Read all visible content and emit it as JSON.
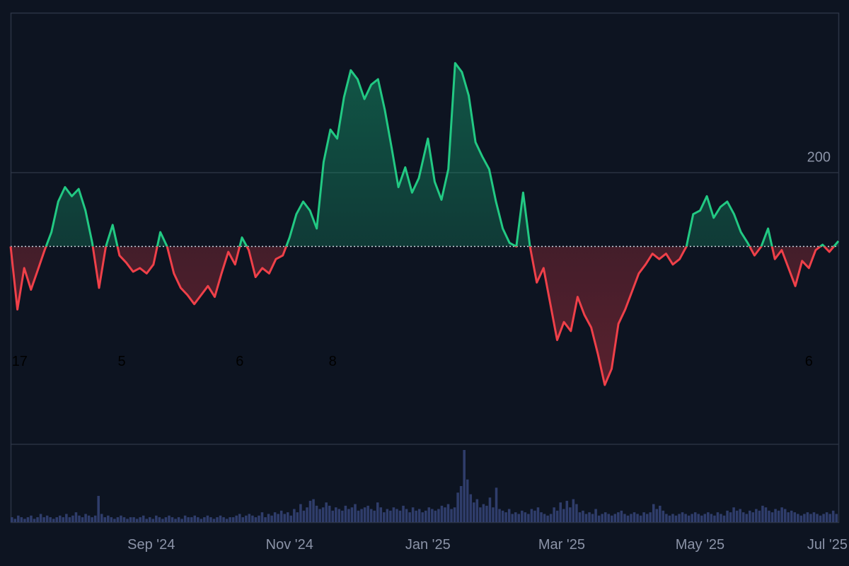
{
  "chart_data": {
    "type": "area",
    "title": "",
    "xlabel": "",
    "ylabel": "",
    "baseline": 150,
    "ylim": [
      40,
      280
    ],
    "y_ticks": [
      "200"
    ],
    "x_ticks": [
      {
        "label": "Sep '24",
        "x": "2024-09-01"
      },
      {
        "label": "Nov '24",
        "x": "2024-11-01"
      },
      {
        "label": "Jan '25",
        "x": "2025-01-01"
      },
      {
        "label": "Mar '25",
        "x": "2025-03-01"
      },
      {
        "label": "May '25",
        "x": "2025-05-01"
      },
      {
        "label": "Jul '25",
        "x": "2025-07-01"
      }
    ],
    "xlim": [
      "2024-07-01",
      "2025-07-01"
    ],
    "series": [
      {
        "values": [
          [
            "2024-07-01",
            150
          ],
          [
            "2024-07-04",
            115
          ],
          [
            "2024-07-07",
            138
          ],
          [
            "2024-07-10",
            126
          ],
          [
            "2024-07-13",
            137
          ],
          [
            "2024-07-16",
            148
          ],
          [
            "2024-07-19",
            158
          ],
          [
            "2024-07-22",
            175
          ],
          [
            "2024-07-25",
            183
          ],
          [
            "2024-07-28",
            178
          ],
          [
            "2024-07-31",
            182
          ],
          [
            "2024-08-03",
            170
          ],
          [
            "2024-08-06",
            152
          ],
          [
            "2024-08-09",
            127
          ],
          [
            "2024-08-12",
            150
          ],
          [
            "2024-08-15",
            162
          ],
          [
            "2024-08-18",
            145
          ],
          [
            "2024-08-21",
            141
          ],
          [
            "2024-08-24",
            136
          ],
          [
            "2024-08-27",
            138
          ],
          [
            "2024-08-30",
            135
          ],
          [
            "2024-09-02",
            140
          ],
          [
            "2024-09-05",
            158
          ],
          [
            "2024-09-08",
            150
          ],
          [
            "2024-09-11",
            135
          ],
          [
            "2024-09-14",
            127
          ],
          [
            "2024-09-17",
            123
          ],
          [
            "2024-09-20",
            118
          ],
          [
            "2024-09-23",
            123
          ],
          [
            "2024-09-26",
            128
          ],
          [
            "2024-09-29",
            122
          ],
          [
            "2024-10-02",
            135
          ],
          [
            "2024-10-05",
            147
          ],
          [
            "2024-10-08",
            140
          ],
          [
            "2024-10-11",
            155
          ],
          [
            "2024-10-14",
            148
          ],
          [
            "2024-10-17",
            133
          ],
          [
            "2024-10-20",
            138
          ],
          [
            "2024-10-23",
            135
          ],
          [
            "2024-10-26",
            143
          ],
          [
            "2024-10-29",
            145
          ],
          [
            "2024-11-01",
            155
          ],
          [
            "2024-11-04",
            168
          ],
          [
            "2024-11-07",
            175
          ],
          [
            "2024-11-10",
            170
          ],
          [
            "2024-11-13",
            160
          ],
          [
            "2024-11-16",
            197
          ],
          [
            "2024-11-19",
            215
          ],
          [
            "2024-11-22",
            210
          ],
          [
            "2024-11-25",
            233
          ],
          [
            "2024-11-28",
            248
          ],
          [
            "2024-12-01",
            243
          ],
          [
            "2024-12-04",
            232
          ],
          [
            "2024-12-07",
            240
          ],
          [
            "2024-12-10",
            243
          ],
          [
            "2024-12-13",
            226
          ],
          [
            "2024-12-16",
            205
          ],
          [
            "2024-12-19",
            183
          ],
          [
            "2024-12-22",
            194
          ],
          [
            "2024-12-25",
            180
          ],
          [
            "2024-12-28",
            188
          ],
          [
            "2025-01-01",
            210
          ],
          [
            "2025-01-04",
            186
          ],
          [
            "2025-01-07",
            176
          ],
          [
            "2025-01-10",
            193
          ],
          [
            "2025-01-13",
            252
          ],
          [
            "2025-01-16",
            247
          ],
          [
            "2025-01-19",
            234
          ],
          [
            "2025-01-22",
            208
          ],
          [
            "2025-01-25",
            200
          ],
          [
            "2025-01-28",
            193
          ],
          [
            "2025-01-31",
            175
          ],
          [
            "2025-02-03",
            160
          ],
          [
            "2025-02-06",
            152
          ],
          [
            "2025-02-09",
            150
          ],
          [
            "2025-02-12",
            180
          ],
          [
            "2025-02-15",
            150
          ],
          [
            "2025-02-18",
            130
          ],
          [
            "2025-02-21",
            138
          ],
          [
            "2025-02-24",
            118
          ],
          [
            "2025-02-27",
            98
          ],
          [
            "2025-03-02",
            108
          ],
          [
            "2025-03-05",
            103
          ],
          [
            "2025-03-08",
            122
          ],
          [
            "2025-03-11",
            112
          ],
          [
            "2025-03-14",
            105
          ],
          [
            "2025-03-17",
            90
          ],
          [
            "2025-03-20",
            73
          ],
          [
            "2025-03-23",
            82
          ],
          [
            "2025-03-26",
            107
          ],
          [
            "2025-03-29",
            115
          ],
          [
            "2025-04-01",
            125
          ],
          [
            "2025-04-04",
            135
          ],
          [
            "2025-04-07",
            140
          ],
          [
            "2025-04-10",
            146
          ],
          [
            "2025-04-13",
            143
          ],
          [
            "2025-04-16",
            146
          ],
          [
            "2025-04-19",
            140
          ],
          [
            "2025-04-22",
            143
          ],
          [
            "2025-04-25",
            150
          ],
          [
            "2025-04-28",
            168
          ],
          [
            "2025-05-01",
            170
          ],
          [
            "2025-05-04",
            178
          ],
          [
            "2025-05-07",
            166
          ],
          [
            "2025-05-10",
            172
          ],
          [
            "2025-05-13",
            175
          ],
          [
            "2025-05-16",
            168
          ],
          [
            "2025-05-19",
            158
          ],
          [
            "2025-05-22",
            152
          ],
          [
            "2025-05-25",
            145
          ],
          [
            "2025-05-28",
            150
          ],
          [
            "2025-05-31",
            160
          ],
          [
            "2025-06-03",
            143
          ],
          [
            "2025-06-06",
            148
          ],
          [
            "2025-06-09",
            138
          ],
          [
            "2025-06-12",
            128
          ],
          [
            "2025-06-15",
            142
          ],
          [
            "2025-06-18",
            138
          ],
          [
            "2025-06-21",
            148
          ],
          [
            "2025-06-24",
            151
          ],
          [
            "2025-06-27",
            147
          ],
          [
            "2025-07-01",
            153
          ]
        ]
      }
    ],
    "markers": [
      {
        "label": "17",
        "x": "2024-07-05"
      },
      {
        "label": "5",
        "x": "2024-08-19"
      },
      {
        "label": "6",
        "x": "2024-10-10"
      },
      {
        "label": "8",
        "x": "2024-11-20"
      },
      {
        "label": "6",
        "x": "2025-06-18"
      }
    ],
    "volume": [
      3,
      2,
      4,
      3,
      2,
      3,
      4,
      2,
      3,
      5,
      3,
      4,
      3,
      2,
      3,
      4,
      3,
      5,
      3,
      4,
      6,
      4,
      3,
      5,
      4,
      3,
      4,
      16,
      5,
      3,
      4,
      3,
      2,
      3,
      4,
      3,
      2,
      3,
      3,
      2,
      3,
      4,
      2,
      3,
      2,
      4,
      3,
      2,
      3,
      4,
      3,
      2,
      3,
      2,
      4,
      3,
      3,
      4,
      3,
      2,
      3,
      4,
      3,
      2,
      3,
      4,
      3,
      2,
      3,
      3,
      4,
      5,
      3,
      4,
      5,
      4,
      3,
      4,
      6,
      3,
      5,
      4,
      6,
      5,
      7,
      5,
      6,
      4,
      8,
      6,
      11,
      7,
      9,
      13,
      14,
      10,
      8,
      9,
      12,
      10,
      7,
      9,
      8,
      7,
      10,
      8,
      9,
      11,
      7,
      8,
      9,
      10,
      8,
      7,
      12,
      9,
      6,
      8,
      7,
      9,
      8,
      7,
      10,
      8,
      6,
      9,
      7,
      8,
      6,
      7,
      9,
      8,
      7,
      8,
      10,
      9,
      11,
      8,
      9,
      18,
      22,
      44,
      26,
      17,
      12,
      14,
      9,
      11,
      10,
      15,
      9,
      21,
      8,
      7,
      6,
      8,
      5,
      6,
      5,
      7,
      6,
      5,
      8,
      7,
      9,
      6,
      5,
      4,
      5,
      9,
      7,
      12,
      8,
      13,
      9,
      14,
      11,
      6,
      7,
      5,
      6,
      5,
      8,
      4,
      5,
      6,
      5,
      4,
      5,
      6,
      7,
      5,
      4,
      5,
      6,
      5,
      4,
      6,
      5,
      6,
      11,
      8,
      10,
      7,
      5,
      4,
      5,
      4,
      5,
      6,
      5,
      4,
      5,
      6,
      5,
      4,
      5,
      6,
      5,
      4,
      6,
      5,
      4,
      7,
      6,
      9,
      7,
      8,
      6,
      5,
      7,
      6,
      8,
      7,
      10,
      9,
      7,
      6,
      8,
      7,
      9,
      8,
      6,
      7,
      6,
      5,
      4,
      5,
      6,
      5,
      6,
      5,
      4,
      5,
      6,
      5,
      7,
      5
    ]
  }
}
